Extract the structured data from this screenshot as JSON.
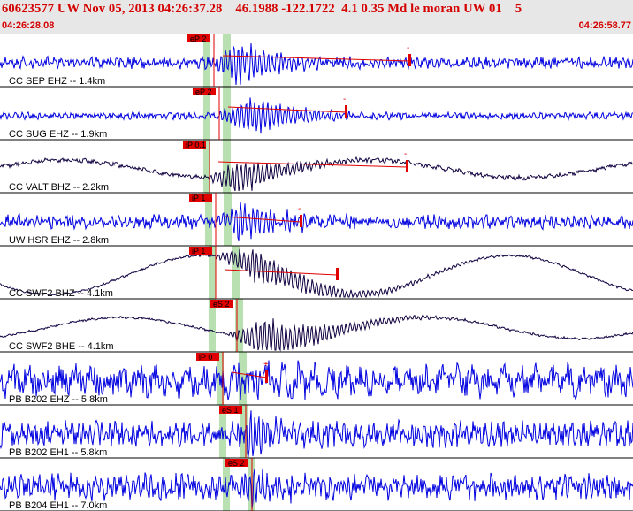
{
  "header": {
    "title": "60623577 UW Nov 05, 2013 04:26:37.28    46.1988 -122.1722  4.1 0.35 Md le moran UW 01    5",
    "time_start": "04:26:28.08",
    "time_end": "04:26:58.77"
  },
  "colors": {
    "header_bg": "#e7e7e7",
    "header_text": "#d40000",
    "trace_blue": "#0000e0",
    "trace_dark": "#100040",
    "pick_red": "#e00000",
    "pick_band": "#b8e0b0"
  },
  "channels": [
    {
      "label": "CC SEP EHZ -- 1.4km",
      "pick": "eP 2",
      "trace": "blue",
      "extra_mark": "-"
    },
    {
      "label": "CC SUG EHZ -- 1.9km",
      "pick": "eP 2",
      "trace": "blue",
      "extra_mark": "-"
    },
    {
      "label": "CC VALT BHZ -- 2.2km",
      "pick": "iP 0.1",
      "trace": "dark",
      "extra_mark": "-"
    },
    {
      "label": "UW HSR EHZ -- 2.8km",
      "pick": "iP 1",
      "trace": "blue",
      "extra_mark": "-"
    },
    {
      "label": "CC SWF2 BHZ -- 4.1km",
      "pick": "iP 1",
      "trace": "dark",
      "extra_mark": ""
    },
    {
      "label": "CC SWF2 BHE -- 4.1km",
      "pick": "eS 2",
      "trace": "dark",
      "extra_mark": ""
    },
    {
      "label": "PB B202 EHZ -- 5.8km",
      "pick": "iP 0",
      "trace": "blue",
      "extra_mark": "+"
    },
    {
      "label": "PB B202 EH1 -- 5.8km",
      "pick": "eS 1",
      "trace": "blue",
      "extra_mark": ""
    },
    {
      "label": "PB B204 EH1 -- 7.0km",
      "pick": "eS 2",
      "trace": "blue",
      "extra_mark": ""
    }
  ]
}
